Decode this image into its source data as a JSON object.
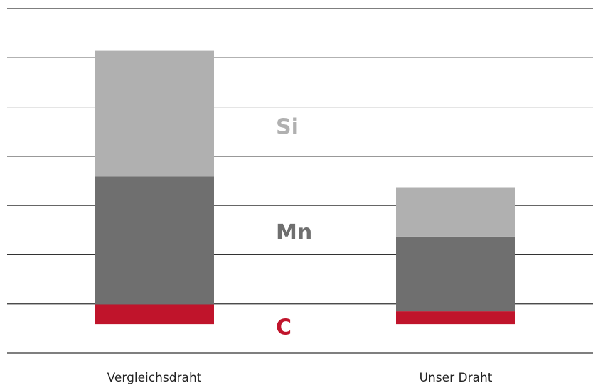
{
  "chart_data": {
    "type": "stacked_bar",
    "categories": [
      "Vergleichsdraht",
      "Unser Draht"
    ],
    "series": [
      {
        "name": "C",
        "color": "#c0142b",
        "values": [
          0.4,
          0.26
        ]
      },
      {
        "name": "Mn",
        "color": "#6f6f6f",
        "values": [
          2.6,
          1.52
        ]
      },
      {
        "name": "Si",
        "color": "#b0b0b0",
        "values": [
          2.55,
          1.0
        ]
      }
    ],
    "ylim": [
      -0.59,
      6.41
    ],
    "yticks": [
      -0.59,
      0.41,
      1.41,
      2.41,
      3.41,
      4.41,
      5.41,
      6.41
    ],
    "grid": true
  }
}
